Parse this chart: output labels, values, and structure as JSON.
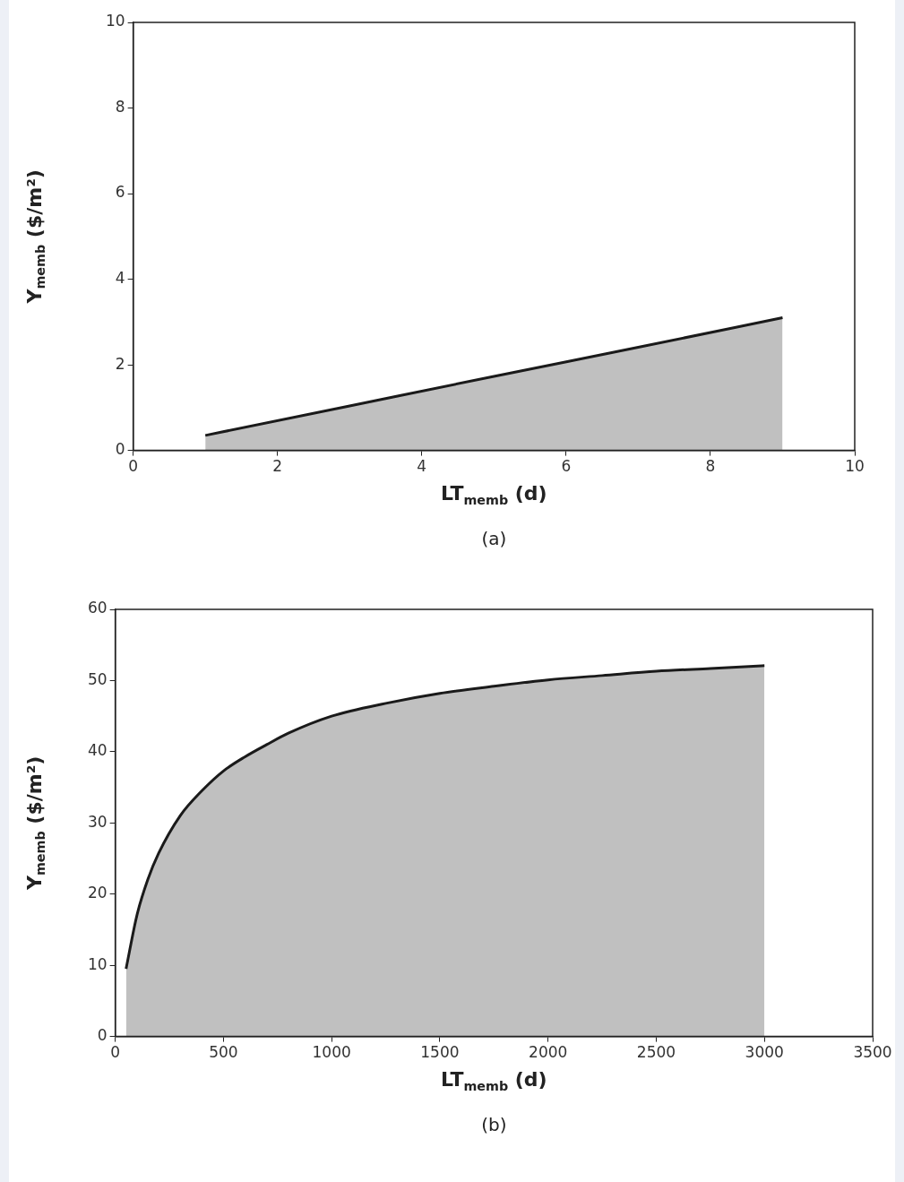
{
  "chart_data": [
    {
      "type": "area",
      "title": "(a)",
      "xlabel": "LT$_{memb}$ (d)",
      "ylabel": "Y$_{memb}$ ($/m²)",
      "xlim": [
        0,
        10
      ],
      "xticks": [
        0,
        2,
        4,
        6,
        8,
        10
      ],
      "ylim": [
        0,
        10
      ],
      "yticks": [
        0,
        2,
        4,
        6,
        8,
        10
      ],
      "series": [
        {
          "color": "#c0c0c0",
          "x": [
            1,
            3,
            5,
            7,
            9
          ],
          "values": [
            0.35,
            1.04,
            1.73,
            2.41,
            3.1
          ]
        }
      ]
    },
    {
      "type": "area",
      "title": "(b)",
      "xlabel": "LT$_{memb}$ (d)",
      "ylabel": "Y$_{memb}$ ($/m²)",
      "xlim": [
        0,
        3500
      ],
      "xticks": [
        0,
        500,
        1000,
        1500,
        2000,
        2500,
        3000,
        3500
      ],
      "ylim": [
        0,
        60
      ],
      "yticks": [
        0,
        10,
        20,
        30,
        40,
        50,
        60
      ],
      "series": [
        {
          "color": "#c0c0c0",
          "x": [
            50,
            100,
            150,
            200,
            300,
            400,
            500,
            600,
            700,
            800,
            1000,
            1250,
            1500,
            1750,
            2000,
            2250,
            2500,
            2750,
            3000
          ],
          "values": [
            9.5,
            17,
            22,
            25.7,
            31,
            34.5,
            37.3,
            39.3,
            41,
            42.6,
            45,
            46.8,
            48.2,
            49.2,
            50.1,
            50.7,
            51.3,
            51.7,
            52.1
          ]
        }
      ]
    }
  ]
}
